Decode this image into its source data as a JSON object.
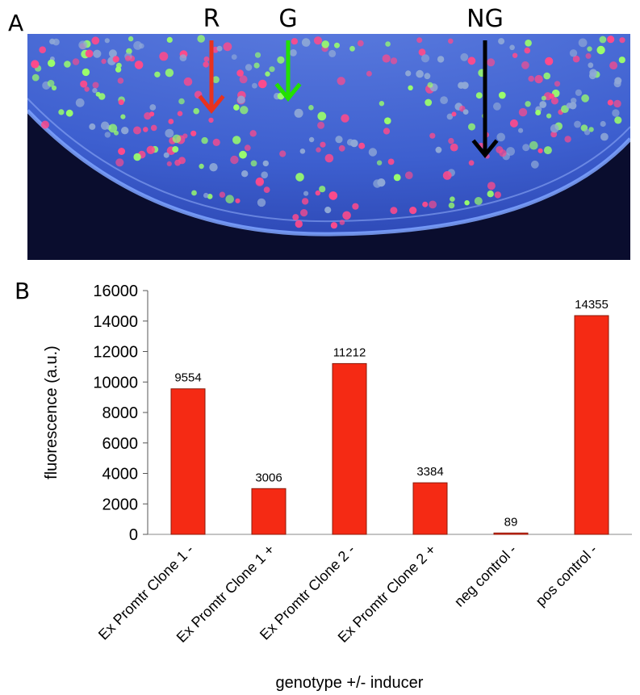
{
  "panel_a": {
    "letter": "A",
    "arrows": [
      {
        "label": "R",
        "color": "#e8321e"
      },
      {
        "label": "G",
        "color": "#22e000"
      },
      {
        "label": "NG",
        "color": "#000000"
      }
    ],
    "colony_colors": [
      "#ff4a8a",
      "#9bff6a",
      "#8fa8d6"
    ],
    "plate_colors": {
      "background": "#0a0d2e",
      "agar": "#3f62d4",
      "rim": "#7fa4ff"
    }
  },
  "panel_b": {
    "letter": "B"
  },
  "chart_data": {
    "type": "bar",
    "categories": [
      "Ex Promtr Clone 1 -",
      "Ex Promtr Clone 1 +",
      "Ex Promtr Clone 2 -",
      "Ex Promtr Clone 2 +",
      "neg control -",
      "pos control -"
    ],
    "values": [
      9554,
      3006,
      11212,
      3384,
      89,
      14355
    ],
    "data_labels": [
      "9554",
      "3006",
      "11212",
      "3384",
      "89",
      "14355"
    ],
    "yticks": [
      "0",
      "2000",
      "4000",
      "6000",
      "8000",
      "10000",
      "12000",
      "14000",
      "16000"
    ],
    "ylim": [
      0,
      16000
    ],
    "xlabel": "genotype +/- inducer",
    "ylabel": "fluorescence (a.u.)",
    "bar_color": "#f52a14",
    "bar_edge_color": "#8a1a0a",
    "grid": false,
    "legend": "none"
  }
}
